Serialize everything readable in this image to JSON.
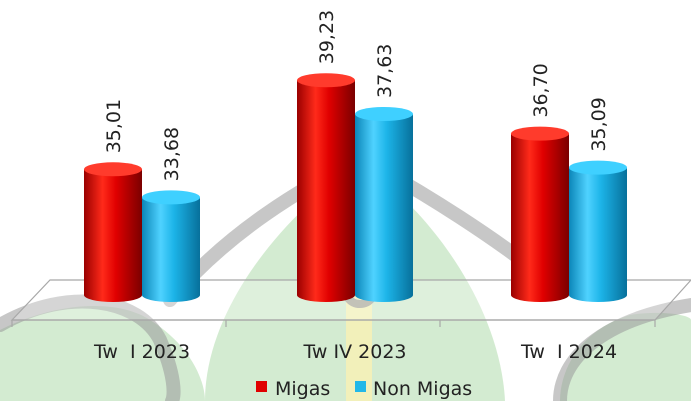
{
  "chart_data": {
    "type": "bar",
    "style": "3d-cylinder",
    "categories": [
      "Tw  I 2023",
      "Tw IV 2023",
      "Tw  I 2024"
    ],
    "series": [
      {
        "name": "Migas",
        "color": "#e00000",
        "values": [
          35.01,
          39.23,
          36.7
        ],
        "labels": [
          "35,01",
          "39,23",
          "36,70"
        ]
      },
      {
        "name": "Non Migas",
        "color": "#22b8e8",
        "values": [
          33.68,
          37.63,
          35.09
        ],
        "labels": [
          "33,68",
          "37,63",
          "35,09"
        ]
      }
    ],
    "title": "",
    "xlabel": "",
    "ylabel": "",
    "ylim": [
      30,
      40
    ],
    "grid": false,
    "legend": "bottom-center",
    "data_label_rotation": "vertical"
  }
}
